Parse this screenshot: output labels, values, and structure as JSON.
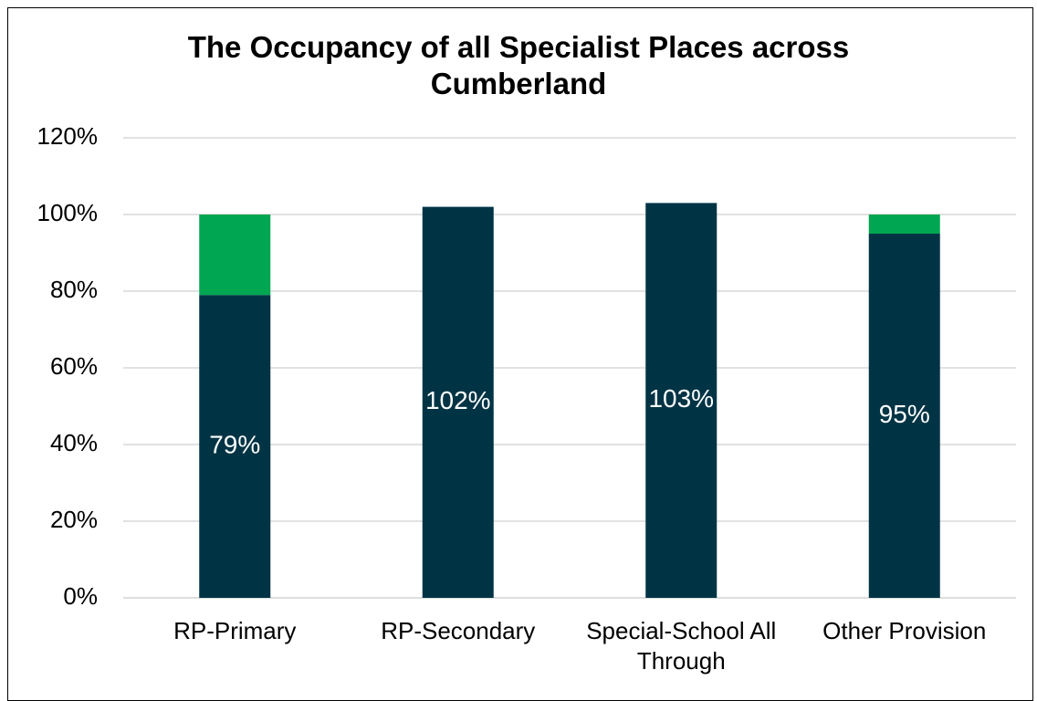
{
  "chart_data": {
    "type": "stacked_bar",
    "title": "The Occupancy of all Specialist Places across Cumberland",
    "categories": [
      "RP-Primary",
      "RP-Secondary",
      "Special-School All Through",
      "Other Provision"
    ],
    "series": [
      {
        "color": "#003445",
        "values": [
          79,
          102,
          103,
          95
        ],
        "value_labels": [
          "79%",
          "102%",
          "103%",
          "95%"
        ]
      },
      {
        "color": "#00a651",
        "values": [
          21,
          0,
          0,
          5
        ]
      }
    ],
    "ylim": [
      0,
      120
    ],
    "yticks": [
      {
        "value": 0,
        "label": "0%"
      },
      {
        "value": 20,
        "label": "20%"
      },
      {
        "value": 40,
        "label": "40%"
      },
      {
        "value": 60,
        "label": "60%"
      },
      {
        "value": 80,
        "label": "80%"
      },
      {
        "value": 100,
        "label": "100%"
      },
      {
        "value": 120,
        "label": "120%"
      }
    ],
    "grid": true
  }
}
